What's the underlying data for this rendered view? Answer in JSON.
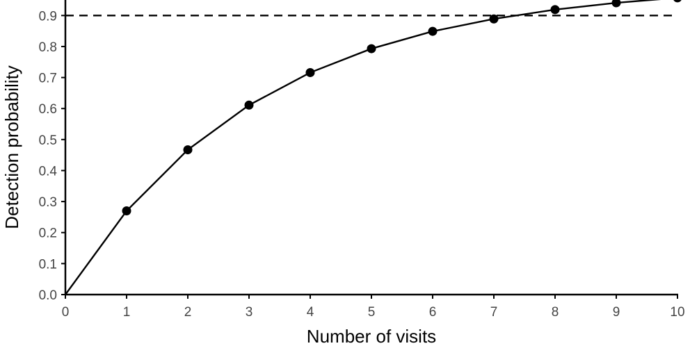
{
  "chart_data": {
    "type": "line",
    "title": "",
    "xlabel": "Number of visits",
    "ylabel": "Detection probability",
    "xlim": [
      0,
      10
    ],
    "ylim": [
      0,
      0.95
    ],
    "x_ticks": [
      0,
      1,
      2,
      3,
      4,
      5,
      6,
      7,
      8,
      9,
      10
    ],
    "y_ticks": [
      0.0,
      0.1,
      0.2,
      0.3,
      0.4,
      0.5,
      0.6,
      0.7,
      0.8,
      0.9
    ],
    "y_tick_labels": [
      "0.0",
      "0.1",
      "0.2",
      "0.3",
      "0.4",
      "0.5",
      "0.6",
      "0.7",
      "0.8",
      "0.9"
    ],
    "grid": false,
    "series": [
      {
        "x": [
          0,
          1,
          2,
          3,
          4,
          5,
          6,
          7,
          8,
          9,
          10
        ],
        "values": [
          0.0,
          0.27,
          0.467,
          0.611,
          0.716,
          0.793,
          0.849,
          0.889,
          0.919,
          0.941,
          0.957
        ],
        "marker": "circle",
        "color": "#000000"
      }
    ],
    "reference_line": {
      "orientation": "horizontal",
      "y": 0.9,
      "style": "dashed",
      "color": "#000000"
    }
  }
}
